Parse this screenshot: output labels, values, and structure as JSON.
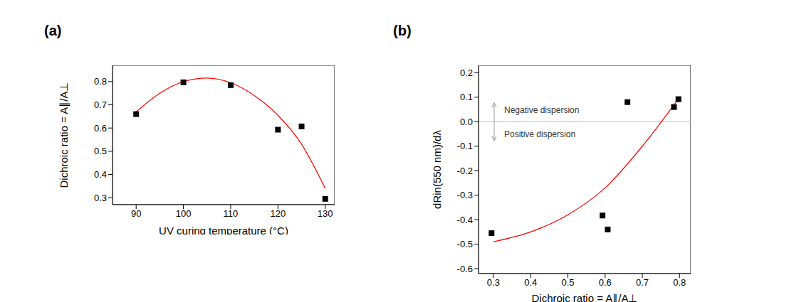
{
  "chart_data": [
    {
      "panel": "(a)",
      "type": "scatter",
      "x_label": "UV curing temperature (°C)",
      "y_label": "Dichroic ratio = A∥/A⊥",
      "xlim": [
        85,
        132
      ],
      "xticks": [
        90,
        100,
        110,
        120,
        130
      ],
      "ylim": [
        0.27,
        0.87
      ],
      "yticks": [
        0.3,
        0.4,
        0.5,
        0.6,
        0.7,
        0.8
      ],
      "series": [
        {
          "type": "scatter",
          "color": "#000000",
          "marker": "square",
          "x": [
            90,
            100,
            110,
            120,
            125,
            130
          ],
          "values": [
            0.66,
            0.797,
            0.785,
            0.593,
            0.607,
            0.295
          ]
        },
        {
          "type": "line",
          "color": "#ff0000",
          "line_style": "solid",
          "x": [
            90,
            95,
            100,
            105,
            110,
            115,
            120,
            125,
            130
          ],
          "values": [
            0.67,
            0.75,
            0.8,
            0.815,
            0.795,
            0.74,
            0.655,
            0.53,
            0.34
          ]
        }
      ]
    },
    {
      "panel": "(b)",
      "type": "scatter",
      "x_label": "Dichroic ratio = A∥/A⊥",
      "y_label": "dRin(550 nm)/dλ",
      "xlim": [
        0.26,
        0.83
      ],
      "xticks": [
        0.3,
        0.4,
        0.5,
        0.6,
        0.7,
        0.8
      ],
      "ylim": [
        -0.62,
        0.23
      ],
      "yticks": [
        -0.6,
        -0.5,
        -0.4,
        -0.3,
        -0.2,
        -0.1,
        {
          "value": 0,
          "label": "0.0"
        },
        0.1,
        0.2
      ],
      "reference_y": 0,
      "annotations": [
        "Negative dispersion",
        "Positive dispersion"
      ],
      "series": [
        {
          "type": "scatter",
          "color": "#000000",
          "marker": "square",
          "x": [
            0.295,
            0.593,
            0.607,
            0.66,
            0.785,
            0.797
          ],
          "values": [
            -0.455,
            -0.383,
            -0.44,
            0.08,
            0.06,
            0.092
          ]
        },
        {
          "type": "line",
          "color": "#ff0000",
          "line_style": "solid",
          "x": [
            0.3,
            0.4,
            0.5,
            0.6,
            0.7,
            0.8
          ],
          "values": [
            -0.49,
            -0.45,
            -0.38,
            -0.27,
            -0.1,
            0.1
          ]
        }
      ]
    }
  ]
}
